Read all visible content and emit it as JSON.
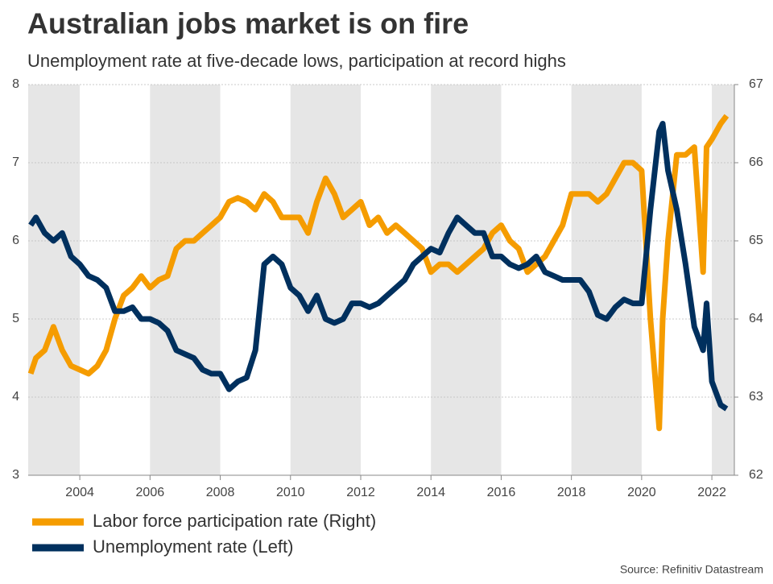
{
  "chart_data": {
    "type": "line",
    "title": "Australian jobs market is on fire",
    "subtitle": "Unemployment rate at five-decade lows, participation at record highs",
    "source": "Source: Refinitiv Datastream",
    "x": [
      2002.6,
      2002.75,
      2003,
      2003.25,
      2003.5,
      2003.75,
      2004,
      2004.25,
      2004.5,
      2004.75,
      2005,
      2005.25,
      2005.5,
      2005.75,
      2006,
      2006.25,
      2006.5,
      2006.75,
      2007,
      2007.25,
      2007.5,
      2007.75,
      2008,
      2008.25,
      2008.5,
      2008.75,
      2009,
      2009.25,
      2009.5,
      2009.75,
      2010,
      2010.25,
      2010.5,
      2010.75,
      2011,
      2011.25,
      2011.5,
      2011.75,
      2012,
      2012.25,
      2012.5,
      2012.75,
      2013,
      2013.25,
      2013.5,
      2013.75,
      2014,
      2014.25,
      2014.5,
      2014.75,
      2015,
      2015.25,
      2015.5,
      2015.75,
      2016,
      2016.25,
      2016.5,
      2016.75,
      2017,
      2017.25,
      2017.5,
      2017.75,
      2018,
      2018.25,
      2018.5,
      2018.75,
      2019,
      2019.25,
      2019.5,
      2019.75,
      2020,
      2020.25,
      2020.5,
      2020.6,
      2020.75,
      2021,
      2021.25,
      2021.5,
      2021.75,
      2021.85,
      2022,
      2022.25,
      2022.42
    ],
    "series": [
      {
        "name": "Labor force participation rate (Right)",
        "color": "#f59c00",
        "axis": "y2",
        "values": [
          63.3,
          63.5,
          63.6,
          63.9,
          63.6,
          63.4,
          63.35,
          63.3,
          63.4,
          63.6,
          64.0,
          64.3,
          64.4,
          64.55,
          64.4,
          64.5,
          64.55,
          64.9,
          65.0,
          65.0,
          65.1,
          65.2,
          65.3,
          65.5,
          65.55,
          65.5,
          65.4,
          65.6,
          65.5,
          65.3,
          65.3,
          65.3,
          65.1,
          65.5,
          65.8,
          65.6,
          65.3,
          65.4,
          65.5,
          65.2,
          65.3,
          65.1,
          65.2,
          65.1,
          65.0,
          64.9,
          64.6,
          64.7,
          64.7,
          64.6,
          64.7,
          64.8,
          64.9,
          65.1,
          65.2,
          65.0,
          64.9,
          64.6,
          64.7,
          64.8,
          65.0,
          65.2,
          65.6,
          65.6,
          65.6,
          65.5,
          65.6,
          65.8,
          66.0,
          66.0,
          65.9,
          64.0,
          62.6,
          64.0,
          65.0,
          66.1,
          66.1,
          66.2,
          64.6,
          66.2,
          66.3,
          66.5,
          66.6
        ]
      },
      {
        "name": "Unemployment rate (Left)",
        "color": "#00305e",
        "values": [
          6.2,
          6.3,
          6.1,
          6.0,
          6.1,
          5.8,
          5.7,
          5.55,
          5.5,
          5.4,
          5.1,
          5.1,
          5.15,
          5.0,
          5.0,
          4.95,
          4.85,
          4.6,
          4.55,
          4.5,
          4.35,
          4.3,
          4.3,
          4.1,
          4.2,
          4.25,
          4.6,
          5.7,
          5.8,
          5.7,
          5.4,
          5.3,
          5.1,
          5.3,
          5.0,
          4.95,
          5.0,
          5.2,
          5.2,
          5.15,
          5.2,
          5.3,
          5.4,
          5.5,
          5.7,
          5.8,
          5.9,
          5.85,
          6.1,
          6.3,
          6.2,
          6.1,
          6.1,
          5.8,
          5.8,
          5.7,
          5.65,
          5.7,
          5.8,
          5.6,
          5.55,
          5.5,
          5.5,
          5.5,
          5.35,
          5.05,
          5.0,
          5.15,
          5.25,
          5.2,
          5.2,
          6.4,
          7.4,
          7.5,
          6.9,
          6.4,
          5.7,
          4.9,
          4.6,
          5.2,
          4.2,
          3.9,
          3.85
        ]
      }
    ],
    "xlim": [
      2002.53,
      2022.64
    ],
    "xticks": [
      2004,
      2006,
      2008,
      2010,
      2012,
      2014,
      2016,
      2018,
      2020,
      2022
    ],
    "ylim": [
      3,
      8
    ],
    "yticks": [
      3,
      4,
      5,
      6,
      7,
      8
    ],
    "y2lim": [
      62,
      67
    ],
    "y2ticks": [
      62,
      63,
      64,
      65,
      66,
      67
    ],
    "grid": true,
    "legend": "bottom"
  }
}
